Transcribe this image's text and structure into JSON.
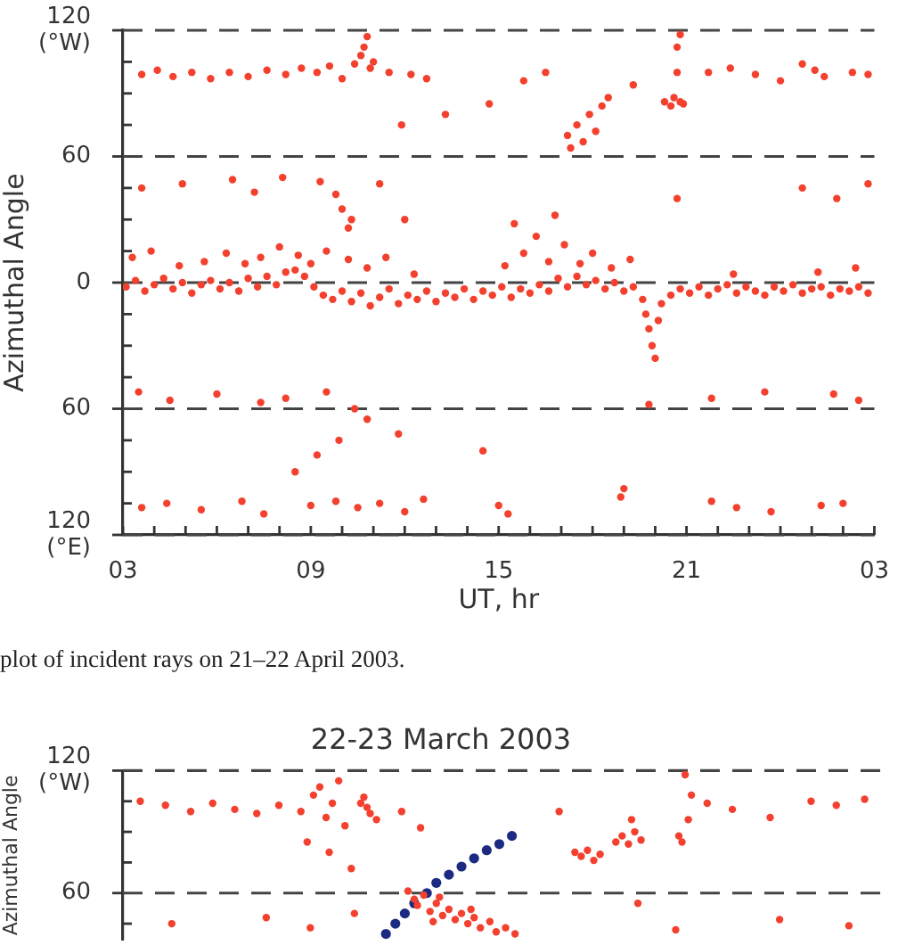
{
  "chart_data": [
    {
      "type": "scatter",
      "xlabel": "UT, hr",
      "ylabel": "Azimuthal Angle",
      "xlim": [
        "2003-04-21T03:00",
        "2003-04-22T03:00"
      ],
      "ylim": [
        -120,
        120
      ],
      "xticks": [
        {
          "value": "2003-04-21T03:00",
          "label": "03"
        },
        {
          "value": "2003-04-21T04:00",
          "label": null
        },
        {
          "value": "2003-04-21T05:00",
          "label": null
        },
        {
          "value": "2003-04-21T06:00",
          "label": null
        },
        {
          "value": "2003-04-21T07:00",
          "label": null
        },
        {
          "value": "2003-04-21T08:00",
          "label": null
        },
        {
          "value": "2003-04-21T09:00",
          "label": "09"
        },
        {
          "value": "2003-04-21T10:00",
          "label": null
        },
        {
          "value": "2003-04-21T11:00",
          "label": null
        },
        {
          "value": "2003-04-21T12:00",
          "label": null
        },
        {
          "value": "2003-04-21T13:00",
          "label": null
        },
        {
          "value": "2003-04-21T14:00",
          "label": null
        },
        {
          "value": "2003-04-21T15:00",
          "label": "15"
        },
        {
          "value": "2003-04-21T16:00",
          "label": null
        },
        {
          "value": "2003-04-21T17:00",
          "label": null
        },
        {
          "value": "2003-04-21T18:00",
          "label": null
        },
        {
          "value": "2003-04-21T19:00",
          "label": null
        },
        {
          "value": "2003-04-21T20:00",
          "label": null
        },
        {
          "value": "2003-04-21T21:00",
          "label": "21"
        },
        {
          "value": "2003-04-21T22:00",
          "label": null
        },
        {
          "value": "2003-04-21T23:00",
          "label": null
        },
        {
          "value": "2003-04-22T00:00",
          "label": null
        },
        {
          "value": "2003-04-22T01:00",
          "label": null
        },
        {
          "value": "2003-04-22T02:00",
          "label": null
        },
        {
          "value": "2003-04-22T03:00",
          "label": "03"
        }
      ],
      "yticks": [
        {
          "value": 120,
          "label": "120\n(°W)"
        },
        {
          "value": 105,
          "label": null
        },
        {
          "value": 90,
          "label": null
        },
        {
          "value": 75,
          "label": null
        },
        {
          "value": 60,
          "label": "60"
        },
        {
          "value": 45,
          "label": null
        },
        {
          "value": 30,
          "label": null
        },
        {
          "value": 15,
          "label": null
        },
        {
          "value": 0,
          "label": "0"
        },
        {
          "value": -15,
          "label": null
        },
        {
          "value": -30,
          "label": null
        },
        {
          "value": -45,
          "label": null
        },
        {
          "value": -60,
          "label": "60"
        },
        {
          "value": -75,
          "label": null
        },
        {
          "value": -90,
          "label": null
        },
        {
          "value": -105,
          "label": null
        },
        {
          "value": -120,
          "label": "120\n(°E)"
        }
      ],
      "grid": "y",
      "marker": "circle",
      "annotations": [
        "plot of incident rays on 21–22 April 2003."
      ],
      "series": [
        {
          "color": "#f4402e",
          "x": [
            "2003-04-21T03:06",
            "2003-04-21T03:24",
            "2003-04-21T03:42",
            "2003-04-21T04:00",
            "2003-04-21T04:18",
            "2003-04-21T04:36",
            "2003-04-21T04:54",
            "2003-04-21T05:12",
            "2003-04-21T05:30",
            "2003-04-21T05:48",
            "2003-04-21T06:06",
            "2003-04-21T06:24",
            "2003-04-21T06:42",
            "2003-04-21T07:00",
            "2003-04-21T07:18",
            "2003-04-21T07:36",
            "2003-04-21T07:54",
            "2003-04-21T08:12",
            "2003-04-21T08:30",
            "2003-04-21T08:48",
            "2003-04-21T09:06",
            "2003-04-21T09:24",
            "2003-04-21T09:42",
            "2003-04-21T10:00",
            "2003-04-21T10:18",
            "2003-04-21T10:36",
            "2003-04-21T10:54",
            "2003-04-21T11:12",
            "2003-04-21T11:30",
            "2003-04-21T11:48",
            "2003-04-21T12:06",
            "2003-04-21T12:24",
            "2003-04-21T12:42",
            "2003-04-21T13:00",
            "2003-04-21T13:18",
            "2003-04-21T13:36",
            "2003-04-21T13:54",
            "2003-04-21T14:12",
            "2003-04-21T14:30",
            "2003-04-21T14:48",
            "2003-04-21T15:06",
            "2003-04-21T15:24",
            "2003-04-21T15:42",
            "2003-04-21T16:00",
            "2003-04-21T16:18",
            "2003-04-21T16:36",
            "2003-04-21T16:54",
            "2003-04-21T17:12",
            "2003-04-21T17:30",
            "2003-04-21T17:48",
            "2003-04-21T18:06",
            "2003-04-21T18:24",
            "2003-04-21T18:42",
            "2003-04-21T19:00",
            "2003-04-21T19:18",
            "2003-04-21T19:36",
            "2003-04-21T19:42",
            "2003-04-21T19:48",
            "2003-04-21T19:54",
            "2003-04-21T20:00",
            "2003-04-21T20:06",
            "2003-04-21T20:12",
            "2003-04-21T20:30",
            "2003-04-21T20:48",
            "2003-04-21T21:06",
            "2003-04-21T21:24",
            "2003-04-21T21:42",
            "2003-04-21T22:00",
            "2003-04-21T22:18",
            "2003-04-21T22:36",
            "2003-04-21T22:54",
            "2003-04-21T23:12",
            "2003-04-21T23:30",
            "2003-04-21T23:48",
            "2003-04-22T00:06",
            "2003-04-22T00:24",
            "2003-04-22T00:42",
            "2003-04-22T01:00",
            "2003-04-22T01:18",
            "2003-04-22T01:36",
            "2003-04-22T01:54",
            "2003-04-22T02:12",
            "2003-04-22T02:30",
            "2003-04-22T02:48",
            "2003-04-21T03:18",
            "2003-04-21T03:54",
            "2003-04-21T04:48",
            "2003-04-21T05:36",
            "2003-04-21T06:18",
            "2003-04-21T06:54",
            "2003-04-21T07:24",
            "2003-04-21T08:00",
            "2003-04-21T08:36",
            "2003-04-21T09:00",
            "2003-04-21T09:30",
            "2003-04-21T10:12",
            "2003-04-21T10:48",
            "2003-04-21T11:24",
            "2003-04-21T12:18",
            "2003-04-21T15:12",
            "2003-04-21T15:48",
            "2003-04-21T16:12",
            "2003-04-21T16:36",
            "2003-04-21T17:06",
            "2003-04-21T17:36",
            "2003-04-21T18:00",
            "2003-04-21T18:36",
            "2003-04-21T19:12",
            "2003-04-21T22:30",
            "2003-04-22T01:12",
            "2003-04-22T02:24",
            "2003-04-21T03:36",
            "2003-04-21T04:54",
            "2003-04-21T06:30",
            "2003-04-21T07:12",
            "2003-04-21T08:06",
            "2003-04-21T09:18",
            "2003-04-21T09:48",
            "2003-04-21T10:00",
            "2003-04-21T10:18",
            "2003-04-21T10:12",
            "2003-04-21T11:12",
            "2003-04-21T12:00",
            "2003-04-21T15:30",
            "2003-04-21T16:48",
            "2003-04-21T20:42",
            "2003-04-22T00:42",
            "2003-04-22T01:48",
            "2003-04-22T02:48",
            "2003-04-21T03:36",
            "2003-04-21T04:06",
            "2003-04-21T04:36",
            "2003-04-21T05:12",
            "2003-04-21T05:48",
            "2003-04-21T06:24",
            "2003-04-21T07:00",
            "2003-04-21T07:36",
            "2003-04-21T08:12",
            "2003-04-21T08:42",
            "2003-04-21T09:12",
            "2003-04-21T09:36",
            "2003-04-21T10:00",
            "2003-04-21T10:24",
            "2003-04-21T10:36",
            "2003-04-21T10:42",
            "2003-04-21T10:48",
            "2003-04-21T10:54",
            "2003-04-21T11:00",
            "2003-04-21T11:30",
            "2003-04-21T12:12",
            "2003-04-21T12:42",
            "2003-04-21T11:54",
            "2003-04-21T13:18",
            "2003-04-21T14:42",
            "2003-04-21T15:48",
            "2003-04-21T16:30",
            "2003-04-21T17:12",
            "2003-04-21T17:18",
            "2003-04-21T17:30",
            "2003-04-21T17:42",
            "2003-04-21T17:54",
            "2003-04-21T18:06",
            "2003-04-21T18:18",
            "2003-04-21T18:30",
            "2003-04-21T19:18",
            "2003-04-21T20:18",
            "2003-04-21T20:30",
            "2003-04-21T20:36",
            "2003-04-21T20:48",
            "2003-04-21T20:54",
            "2003-04-21T20:42",
            "2003-04-21T20:42",
            "2003-04-21T20:48",
            "2003-04-21T21:42",
            "2003-04-21T22:24",
            "2003-04-21T23:12",
            "2003-04-22T00:00",
            "2003-04-22T00:42",
            "2003-04-22T01:06",
            "2003-04-22T01:24",
            "2003-04-22T02:18",
            "2003-04-22T02:48",
            "2003-04-21T03:30",
            "2003-04-21T04:30",
            "2003-04-21T06:00",
            "2003-04-21T07:24",
            "2003-04-21T08:12",
            "2003-04-21T09:30",
            "2003-04-21T10:24",
            "2003-04-21T10:48",
            "2003-04-21T09:54",
            "2003-04-21T09:12",
            "2003-04-21T11:48",
            "2003-04-21T08:30",
            "2003-04-21T14:30",
            "2003-04-21T19:48",
            "2003-04-21T21:48",
            "2003-04-21T23:30",
            "2003-04-22T01:42",
            "2003-04-22T02:30",
            "2003-04-21T03:36",
            "2003-04-21T04:24",
            "2003-04-21T05:30",
            "2003-04-21T06:48",
            "2003-04-21T07:30",
            "2003-04-21T09:00",
            "2003-04-21T09:48",
            "2003-04-21T10:30",
            "2003-04-21T11:12",
            "2003-04-21T12:00",
            "2003-04-21T12:36",
            "2003-04-21T15:00",
            "2003-04-21T15:18",
            "2003-04-21T21:48",
            "2003-04-21T22:36",
            "2003-04-21T23:42",
            "2003-04-22T01:18",
            "2003-04-22T02:00",
            "2003-04-21T19:00",
            "2003-04-21T18:54"
          ],
          "values": [
            -2,
            1,
            -4,
            -1,
            2,
            -3,
            0,
            -5,
            -1,
            1,
            -3,
            0,
            -4,
            2,
            -2,
            3,
            -1,
            5,
            6,
            3,
            -2,
            -6,
            -8,
            -4,
            -9,
            -5,
            -11,
            -7,
            -3,
            -10,
            -6,
            -8,
            -4,
            -9,
            -5,
            -7,
            -3,
            -8,
            -4,
            -6,
            -2,
            -7,
            -3,
            -5,
            -1,
            -4,
            2,
            -2,
            3,
            -1,
            1,
            -3,
            0,
            -4,
            -2,
            -8,
            -15,
            -22,
            -30,
            -36,
            -18,
            -10,
            -6,
            -3,
            -5,
            -2,
            -6,
            -3,
            -1,
            -5,
            -2,
            -4,
            -6,
            -2,
            -4,
            -1,
            -5,
            -3,
            -2,
            -6,
            -3,
            -4,
            -2,
            -5,
            12,
            15,
            8,
            10,
            14,
            9,
            12,
            17,
            13,
            9,
            15,
            11,
            7,
            12,
            4,
            8,
            14,
            22,
            10,
            18,
            9,
            14,
            7,
            11,
            4,
            5,
            7,
            45,
            47,
            49,
            43,
            50,
            48,
            42,
            35,
            30,
            26,
            47,
            30,
            28,
            32,
            40,
            45,
            40,
            47,
            99,
            101,
            98,
            100,
            97,
            100,
            98,
            101,
            99,
            102,
            100,
            103,
            97,
            104,
            108,
            112,
            117,
            102,
            105,
            100,
            99,
            97,
            75,
            80,
            85,
            96,
            100,
            70,
            64,
            75,
            67,
            80,
            72,
            84,
            88,
            94,
            86,
            84,
            88,
            86,
            85,
            100,
            112,
            118,
            100,
            102,
            99,
            96,
            104,
            101,
            98,
            100,
            99,
            -52,
            -56,
            -53,
            -57,
            -55,
            -52,
            -60,
            -65,
            -75,
            -82,
            -72,
            -90,
            -80,
            -58,
            -55,
            -52,
            -53,
            -56,
            -107,
            -105,
            -108,
            -104,
            -110,
            -106,
            -104,
            -107,
            -105,
            -109,
            -103,
            -106,
            -110,
            -104,
            -107,
            -109,
            -106,
            -105,
            -98,
            -102
          ]
        }
      ]
    },
    {
      "type": "scatter",
      "title": "22-23 March 2003",
      "ylabel": "Azimuthal Angle",
      "ylim": [
        37,
        120
      ],
      "yticks": [
        {
          "value": 120,
          "label": "120\n(°W)"
        },
        {
          "value": 105,
          "label": null
        },
        {
          "value": 90,
          "label": null
        },
        {
          "value": 75,
          "label": null
        },
        {
          "value": 60,
          "label": "60"
        },
        {
          "value": 45,
          "label": null
        }
      ],
      "grid": "y",
      "marker": "circle",
      "tick_labels": "y",
      "categories": [
        null,
        null,
        null,
        null,
        null,
        null,
        null,
        null,
        null,
        null,
        null,
        null,
        null,
        null,
        null,
        null,
        null,
        null,
        null,
        null,
        null,
        null,
        null,
        null,
        null,
        null,
        null,
        null,
        null,
        null,
        null,
        null,
        null,
        null,
        null,
        null,
        null,
        null,
        null,
        null,
        null,
        null,
        null,
        null,
        null,
        null,
        null,
        null,
        null,
        null,
        null,
        null,
        null,
        null,
        null,
        null,
        null,
        null,
        null,
        null,
        null,
        null,
        null,
        null,
        null,
        null,
        null,
        null,
        null,
        null,
        null,
        null,
        null,
        null,
        null,
        null,
        null,
        null,
        null,
        null,
        null,
        null,
        null,
        null,
        null,
        null,
        null,
        null,
        null,
        null,
        null,
        null,
        null,
        null,
        null,
        null,
        null,
        null,
        null,
        null,
        null,
        null,
        null,
        null,
        null,
        null,
        null,
        null,
        null,
        null,
        null,
        null,
        null,
        null,
        null,
        null,
        null,
        null,
        null,
        null,
        null,
        null,
        null,
        null,
        null,
        null,
        null,
        null,
        null,
        null,
        null,
        null,
        null,
        null,
        null,
        null,
        null,
        null,
        null,
        null,
        null,
        null,
        null,
        null,
        null,
        null,
        null,
        null,
        null,
        null,
        null,
        null,
        null,
        null,
        null,
        null,
        null,
        null,
        null,
        null,
        null,
        null,
        null,
        null,
        null,
        null,
        null,
        null,
        null,
        null,
        null,
        null,
        null,
        null,
        null,
        null,
        null,
        null,
        null,
        null,
        null,
        null,
        null,
        null,
        null,
        null,
        null,
        null,
        null,
        null,
        null,
        null,
        null,
        null,
        null,
        null,
        null,
        null,
        null,
        null,
        null,
        null,
        null,
        null,
        null,
        null,
        null,
        null,
        null,
        null,
        null,
        null,
        null,
        null,
        null,
        null,
        null,
        null,
        null,
        null,
        null,
        null,
        null,
        null,
        null,
        null,
        null,
        null,
        null,
        null,
        null,
        null,
        null,
        null,
        null,
        null,
        null,
        null,
        null,
        null,
        null
      ],
      "series": [
        {
          "color": "#f4402e",
          "values": [
            null,
            null,
            null,
            null,
            null,
            105,
            null,
            null,
            null,
            null,
            null,
            null,
            null,
            103,
            null,
            45,
            null,
            null,
            null,
            null,
            null,
            100,
            null,
            null,
            null,
            null,
            null,
            null,
            104,
            null,
            null,
            null,
            null,
            null,
            null,
            101,
            null,
            null,
            null,
            null,
            null,
            null,
            99,
            null,
            null,
            48,
            null,
            null,
            null,
            103,
            null,
            null,
            null,
            null,
            null,
            null,
            100,
            null,
            85,
            43,
            108,
            null,
            112,
            null,
            97,
            80,
            104,
            null,
            115,
            null,
            93,
            null,
            72,
            50,
            null,
            104,
            107,
            102,
            99,
            null,
            96,
            null,
            null,
            null,
            null,
            null,
            null,
            null,
            100,
            null,
            61,
            null,
            57,
            54,
            92,
            59,
            null,
            51,
            46,
            55,
            58,
            49,
            null,
            52,
            null,
            47,
            null,
            50,
            null,
            45,
            52,
            48,
            null,
            43,
            null,
            null,
            46,
            null,
            41,
            null,
            null,
            43,
            null,
            null,
            40,
            null,
            null,
            null,
            null,
            null,
            null,
            null,
            null,
            null,
            null,
            null,
            null,
            null,
            100,
            null,
            null,
            null,
            null,
            80,
            null,
            78,
            null,
            81,
            null,
            76,
            null,
            79,
            null,
            null,
            null,
            null,
            85,
            null,
            88,
            null,
            84,
            96,
            90,
            55,
            86,
            null,
            null,
            null,
            null,
            null,
            null,
            null,
            null,
            null,
            null,
            42,
            88,
            85,
            118,
            96,
            108,
            null,
            null,
            null,
            null,
            104,
            null,
            null,
            null,
            null,
            null,
            null,
            null,
            101,
            null,
            null,
            null,
            null,
            null,
            null,
            null,
            null,
            null,
            null,
            null,
            97,
            null,
            null,
            47,
            null,
            null,
            null,
            null,
            null,
            null,
            null,
            null,
            null,
            105,
            null,
            null,
            null,
            null,
            null,
            null,
            null,
            103,
            null,
            null,
            null,
            44,
            null,
            null,
            null,
            null,
            106,
            null,
            null,
            null,
            null,
            null
          ]
        },
        {
          "color": "#1c2a82",
          "values": [
            null,
            null,
            null,
            null,
            null,
            null,
            null,
            null,
            null,
            null,
            null,
            null,
            null,
            null,
            null,
            null,
            null,
            null,
            null,
            null,
            null,
            null,
            null,
            null,
            null,
            null,
            null,
            null,
            null,
            null,
            null,
            null,
            null,
            null,
            null,
            null,
            null,
            null,
            null,
            null,
            null,
            null,
            null,
            null,
            null,
            null,
            null,
            null,
            null,
            null,
            null,
            null,
            null,
            null,
            null,
            null,
            null,
            null,
            null,
            null,
            null,
            null,
            null,
            null,
            null,
            null,
            null,
            null,
            null,
            null,
            null,
            null,
            null,
            null,
            null,
            null,
            null,
            null,
            null,
            null,
            null,
            null,
            null,
            40,
            null,
            null,
            45,
            null,
            null,
            50,
            null,
            null,
            55,
            null,
            null,
            null,
            60,
            null,
            null,
            65,
            null,
            null,
            null,
            69,
            null,
            null,
            null,
            73,
            null,
            null,
            null,
            77,
            null,
            null,
            null,
            81,
            null,
            null,
            null,
            84,
            null,
            null,
            null,
            88,
            null,
            null,
            null,
            null,
            null,
            null,
            null,
            null,
            null,
            null,
            null,
            null,
            null,
            null,
            null,
            null,
            null,
            null,
            null,
            null,
            null,
            null,
            null,
            null,
            null,
            null,
            null,
            null,
            null,
            null,
            null,
            null,
            null,
            null,
            null,
            null,
            null,
            null,
            null,
            null,
            null,
            null,
            null,
            null,
            null,
            null,
            null,
            null,
            null,
            null,
            null,
            null,
            null,
            null,
            null,
            null,
            null,
            null,
            null,
            null,
            null,
            null,
            null,
            null,
            null,
            null,
            null,
            null,
            null,
            null,
            null,
            null,
            null,
            null,
            null,
            null,
            null,
            null,
            null,
            null,
            null,
            null,
            null,
            null,
            null,
            null,
            null,
            null,
            null,
            null,
            null,
            null,
            null,
            null,
            null,
            null,
            null,
            null,
            null,
            null,
            null,
            null,
            null,
            null,
            null,
            null,
            null,
            null,
            null,
            null,
            null,
            null,
            null,
            null,
            null,
            null,
            null
          ]
        }
      ]
    }
  ]
}
